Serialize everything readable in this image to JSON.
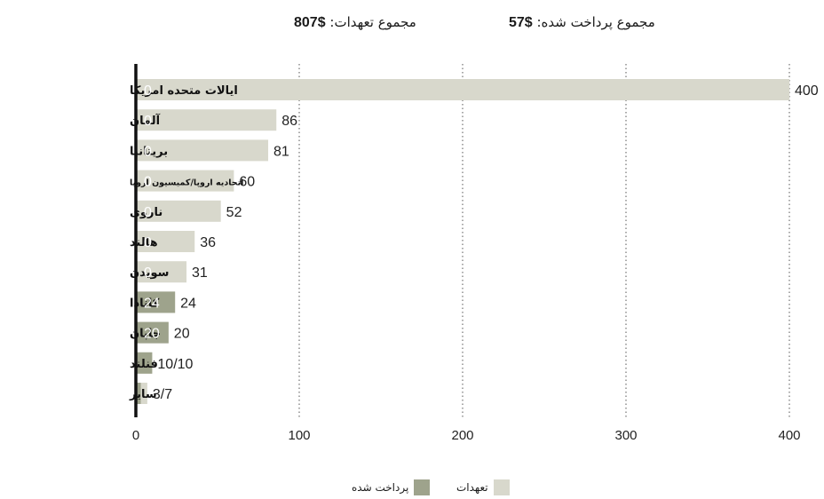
{
  "totals": {
    "commitments_label": "مجموع تعهدات:",
    "commitments_value": "$807",
    "paid_label": "مجموع پرداخت شده:",
    "paid_value": "$57"
  },
  "legend": {
    "commitments": "تعهدات",
    "paid": "پرداخت شده"
  },
  "colors": {
    "commitments": "#d8d8cc",
    "paid": "#9ea38c",
    "grid": "#555555",
    "axis": "#111111"
  },
  "chart_data": {
    "type": "bar",
    "orientation": "horizontal",
    "categories": [
      "ایالات متحده امریکا",
      "آلمان",
      "بریتانیا",
      "اتحادیه اروپا/کمیسیون اروپا",
      "ناروی",
      "هالند",
      "سویدن",
      "کانادا",
      "جاپان",
      "فنلند",
      "سایر"
    ],
    "series": [
      {
        "name": "تعهدات",
        "values": [
          400,
          86,
          81,
          60,
          52,
          36,
          31,
          24,
          20,
          10,
          7
        ]
      },
      {
        "name": "پرداخت شده",
        "values": [
          0,
          0,
          0,
          0,
          0,
          0,
          0,
          24,
          20,
          10,
          3
        ]
      }
    ],
    "paid_labels": [
      "0",
      "0",
      "0",
      "0",
      "0",
      "0",
      "0",
      "24",
      "",
      "",
      ""
    ],
    "commit_labels": [
      "400",
      "86",
      "81",
      "60",
      "52",
      "36",
      "31",
      "24",
      "",
      "10/10",
      "3/7"
    ],
    "paid_labels_fix": [
      "0",
      "0",
      "0",
      "0",
      "0",
      "0",
      "0",
      "24",
      "20",
      "",
      ""
    ],
    "commit_labels_fix": [
      "400",
      "86",
      "81",
      "60",
      "52",
      "36",
      "31",
      "24",
      "20",
      "10/10",
      "3/7"
    ],
    "xlim": [
      0,
      400
    ],
    "xticks": [
      0,
      100,
      200,
      300,
      400
    ],
    "grid": "vertical-dotted",
    "legend": "bottom-center"
  }
}
